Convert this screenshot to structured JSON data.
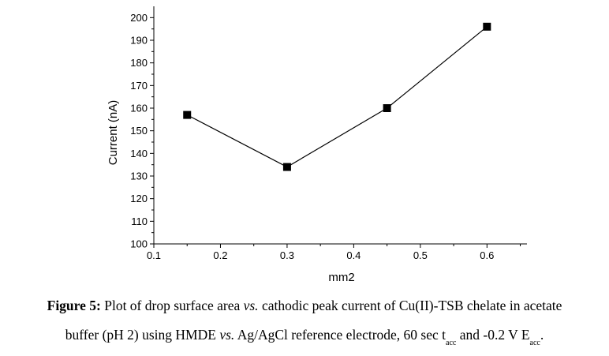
{
  "chart_data": {
    "type": "line",
    "xlabel": "mm2",
    "ylabel": "Current (nA)",
    "xlim": [
      0.1,
      0.66
    ],
    "ylim": [
      100,
      205
    ],
    "x_ticks": [
      "0.1",
      "0.2",
      "0.3",
      "0.4",
      "0.5",
      "0.6"
    ],
    "y_ticks": [
      "100",
      "110",
      "120",
      "130",
      "140",
      "150",
      "160",
      "170",
      "180",
      "190",
      "200"
    ],
    "series": [
      {
        "x": [
          0.15,
          0.3,
          0.45,
          0.6
        ],
        "y": [
          157,
          134,
          160,
          196
        ]
      }
    ],
    "marker": "square",
    "grid": false
  },
  "caption": {
    "label": "Figure 5:",
    "line1_a": " Plot of drop surface area ",
    "vs1": "vs.",
    "line1_b": " cathodic peak current of Cu(II)-TSB chelate in acetate",
    "line2_a": "buffer (pH 2) using HMDE ",
    "vs2": "vs.",
    "line2_b": " Ag/AgCl reference electrode, 60 sec t",
    "sub1": "acc",
    "line2_c": " and -0.2 V E",
    "sub2": "acc",
    "line2_d": "."
  }
}
